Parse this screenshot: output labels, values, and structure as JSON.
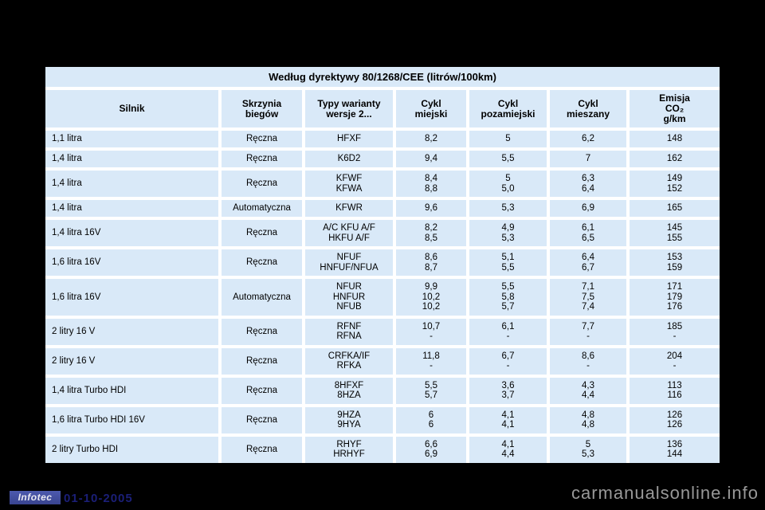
{
  "table": {
    "title": "Według dyrektywy 80/1268/CEE (litrów/100km)",
    "columns": [
      [
        "Silnik"
      ],
      [
        "Skrzynia",
        "biegów"
      ],
      [
        "Typy warianty",
        "wersje 2..."
      ],
      [
        "Cykl",
        "miejski"
      ],
      [
        "Cykl",
        "pozamiejski"
      ],
      [
        "Cykl",
        "mieszany"
      ],
      [
        "Emisja",
        "CO₂",
        "g/km"
      ]
    ],
    "rows": [
      [
        [
          "1,1 litra"
        ],
        [
          "Ręczna"
        ],
        [
          "HFXF"
        ],
        [
          "8,2"
        ],
        [
          "5"
        ],
        [
          "6,2"
        ],
        [
          "148"
        ]
      ],
      [
        [
          "1,4 litra"
        ],
        [
          "Ręczna"
        ],
        [
          "K6D2"
        ],
        [
          "9,4"
        ],
        [
          "5,5"
        ],
        [
          "7"
        ],
        [
          "162"
        ]
      ],
      [
        [
          "1,4 litra"
        ],
        [
          "Ręczna"
        ],
        [
          "KFWF",
          "KFWA"
        ],
        [
          "8,4",
          "8,8"
        ],
        [
          "5",
          "5,0"
        ],
        [
          "6,3",
          "6,4"
        ],
        [
          "149",
          "152"
        ]
      ],
      [
        [
          "1,4 litra"
        ],
        [
          "Automatyczna"
        ],
        [
          "KFWR"
        ],
        [
          "9,6"
        ],
        [
          "5,3"
        ],
        [
          "6,9"
        ],
        [
          "165"
        ]
      ],
      [
        [
          "1,4 litra 16V"
        ],
        [
          "Ręczna"
        ],
        [
          "A/C KFU A/F",
          "HKFU A/F"
        ],
        [
          "8,2",
          "8,5"
        ],
        [
          "4,9",
          "5,3"
        ],
        [
          "6,1",
          "6,5"
        ],
        [
          "145",
          "155"
        ]
      ],
      [
        [
          "1,6 litra 16V"
        ],
        [
          "Ręczna"
        ],
        [
          "NFUF",
          "HNFUF/NFUA"
        ],
        [
          "8,6",
          "8,7"
        ],
        [
          "5,1",
          "5,5"
        ],
        [
          "6,4",
          "6,7"
        ],
        [
          "153",
          "159"
        ]
      ],
      [
        [
          "1,6 litra 16V"
        ],
        [
          "Automatyczna"
        ],
        [
          "NFUR",
          "HNFUR",
          "NFUB"
        ],
        [
          "9,9",
          "10,2",
          "10,2"
        ],
        [
          "5,5",
          "5,8",
          "5,7"
        ],
        [
          "7,1",
          "7,5",
          "7,4"
        ],
        [
          "171",
          "179",
          "176"
        ]
      ],
      [
        [
          "2 litry 16 V"
        ],
        [
          "Ręczna"
        ],
        [
          "RFNF",
          "RFNA"
        ],
        [
          "10,7",
          "-"
        ],
        [
          "6,1",
          "-"
        ],
        [
          "7,7",
          "-"
        ],
        [
          "185",
          "-"
        ]
      ],
      [
        [
          "2 litry 16 V"
        ],
        [
          "Ręczna"
        ],
        [
          "CRFKA/IF",
          "RFKA"
        ],
        [
          "11,8",
          "-"
        ],
        [
          "6,7",
          "-"
        ],
        [
          "8,6",
          "-"
        ],
        [
          "204",
          "-"
        ]
      ],
      [
        [
          "1,4 litra Turbo HDI"
        ],
        [
          "Ręczna"
        ],
        [
          "8HFXF",
          "8HZA"
        ],
        [
          "5,5",
          "5,7"
        ],
        [
          "3,6",
          "3,7"
        ],
        [
          "4,3",
          "4,4"
        ],
        [
          "113",
          "116"
        ]
      ],
      [
        [
          "1,6 litra Turbo HDI 16V"
        ],
        [
          "Ręczna"
        ],
        [
          "9HZA",
          "9HYA"
        ],
        [
          "6",
          "6"
        ],
        [
          "4,1",
          "4,1"
        ],
        [
          "4,8",
          "4,8"
        ],
        [
          "126",
          "126"
        ]
      ],
      [
        [
          "2 litry Turbo HDI"
        ],
        [
          "Ręczna"
        ],
        [
          "RHYF",
          "HRHYF"
        ],
        [
          "6,6",
          "6,9"
        ],
        [
          "4,1",
          "4,4"
        ],
        [
          "5",
          "5,3"
        ],
        [
          "136",
          "144"
        ]
      ]
    ]
  },
  "footer": {
    "logo_text": "Infotec",
    "date": "01-10-2005",
    "watermark": "carmanualsonline.info"
  },
  "colors": {
    "cell_bg": "#d9e9f8",
    "gutter": "#ffffff",
    "page_bg": "#000000",
    "logo_bg": "#39448f",
    "date_color": "#1b1f78",
    "watermark_color": "#989898"
  }
}
